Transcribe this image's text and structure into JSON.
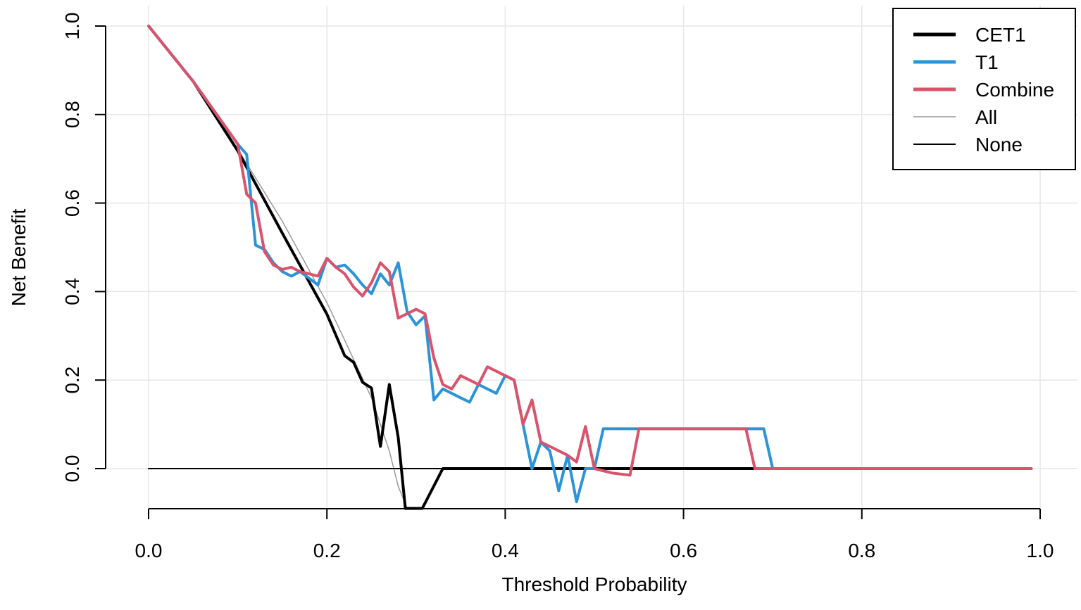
{
  "chart_data": {
    "type": "line",
    "title": "",
    "xlabel": "Threshold Probability",
    "ylabel": "Net Benefit",
    "xlim": [
      0.0,
      1.0
    ],
    "ylim": [
      -0.09,
      1.0
    ],
    "x_ticks": [
      "0.0",
      "0.2",
      "0.4",
      "0.6",
      "0.8",
      "1.0"
    ],
    "y_ticks": [
      "0.0",
      "0.2",
      "0.4",
      "0.6",
      "0.8",
      "1.0"
    ],
    "grid": true,
    "legend_position": "top-right",
    "series": [
      {
        "name": "CET1",
        "color": "#000000",
        "style": "thick",
        "points": [
          [
            0,
            1
          ],
          [
            0.05,
            0.875
          ],
          [
            0.1,
            0.718
          ],
          [
            0.15,
            0.532
          ],
          [
            0.2,
            0.349
          ],
          [
            0.22,
            0.255
          ],
          [
            0.23,
            0.24
          ],
          [
            0.24,
            0.195
          ],
          [
            0.25,
            0.182
          ],
          [
            0.26,
            0.05
          ],
          [
            0.27,
            0.19
          ],
          [
            0.28,
            0.07
          ],
          [
            0.288,
            -0.09
          ],
          [
            0.307,
            -0.09
          ],
          [
            0.33,
            0.0
          ],
          [
            0.5,
            0.0
          ],
          [
            0.7,
            0.0
          ],
          [
            0.99,
            0.0
          ]
        ]
      },
      {
        "name": "T1",
        "color": "#2b94d9",
        "style": "thick",
        "points": [
          [
            0,
            1
          ],
          [
            0.05,
            0.875
          ],
          [
            0.1,
            0.733
          ],
          [
            0.11,
            0.71
          ],
          [
            0.12,
            0.505
          ],
          [
            0.13,
            0.495
          ],
          [
            0.14,
            0.465
          ],
          [
            0.15,
            0.445
          ],
          [
            0.16,
            0.435
          ],
          [
            0.17,
            0.445
          ],
          [
            0.18,
            0.43
          ],
          [
            0.19,
            0.415
          ],
          [
            0.2,
            0.475
          ],
          [
            0.21,
            0.455
          ],
          [
            0.22,
            0.46
          ],
          [
            0.23,
            0.44
          ],
          [
            0.24,
            0.415
          ],
          [
            0.25,
            0.395
          ],
          [
            0.26,
            0.44
          ],
          [
            0.27,
            0.415
          ],
          [
            0.28,
            0.465
          ],
          [
            0.29,
            0.355
          ],
          [
            0.3,
            0.325
          ],
          [
            0.31,
            0.345
          ],
          [
            0.32,
            0.155
          ],
          [
            0.33,
            0.18
          ],
          [
            0.34,
            0.17
          ],
          [
            0.35,
            0.16
          ],
          [
            0.36,
            0.15
          ],
          [
            0.37,
            0.19
          ],
          [
            0.38,
            0.18
          ],
          [
            0.39,
            0.17
          ],
          [
            0.4,
            0.21
          ],
          [
            0.41,
            0.2
          ],
          [
            0.42,
            0.1
          ],
          [
            0.43,
            0.0
          ],
          [
            0.44,
            0.06
          ],
          [
            0.45,
            0.04
          ],
          [
            0.46,
            -0.05
          ],
          [
            0.47,
            0.03
          ],
          [
            0.48,
            -0.075
          ],
          [
            0.49,
            0.0
          ],
          [
            0.5,
            0.0
          ],
          [
            0.51,
            0.09
          ],
          [
            0.55,
            0.09
          ],
          [
            0.6,
            0.09
          ],
          [
            0.65,
            0.09
          ],
          [
            0.69,
            0.09
          ],
          [
            0.7,
            0.0
          ],
          [
            0.99,
            0.0
          ]
        ]
      },
      {
        "name": "Combine",
        "color": "#d9536b",
        "style": "thick",
        "points": [
          [
            0,
            1
          ],
          [
            0.05,
            0.875
          ],
          [
            0.1,
            0.733
          ],
          [
            0.11,
            0.62
          ],
          [
            0.12,
            0.6
          ],
          [
            0.13,
            0.49
          ],
          [
            0.14,
            0.46
          ],
          [
            0.15,
            0.45
          ],
          [
            0.16,
            0.455
          ],
          [
            0.17,
            0.445
          ],
          [
            0.18,
            0.44
          ],
          [
            0.19,
            0.435
          ],
          [
            0.2,
            0.475
          ],
          [
            0.21,
            0.455
          ],
          [
            0.22,
            0.44
          ],
          [
            0.23,
            0.41
          ],
          [
            0.24,
            0.39
          ],
          [
            0.25,
            0.42
          ],
          [
            0.26,
            0.465
          ],
          [
            0.27,
            0.445
          ],
          [
            0.28,
            0.34
          ],
          [
            0.29,
            0.35
          ],
          [
            0.3,
            0.36
          ],
          [
            0.31,
            0.35
          ],
          [
            0.32,
            0.25
          ],
          [
            0.33,
            0.19
          ],
          [
            0.34,
            0.18
          ],
          [
            0.35,
            0.21
          ],
          [
            0.36,
            0.2
          ],
          [
            0.37,
            0.19
          ],
          [
            0.38,
            0.23
          ],
          [
            0.39,
            0.22
          ],
          [
            0.4,
            0.21
          ],
          [
            0.41,
            0.2
          ],
          [
            0.42,
            0.1
          ],
          [
            0.43,
            0.155
          ],
          [
            0.44,
            0.06
          ],
          [
            0.45,
            0.05
          ],
          [
            0.46,
            0.04
          ],
          [
            0.47,
            0.03
          ],
          [
            0.48,
            0.015
          ],
          [
            0.49,
            0.095
          ],
          [
            0.5,
            0.0
          ],
          [
            0.52,
            -0.01
          ],
          [
            0.54,
            -0.015
          ],
          [
            0.55,
            0.09
          ],
          [
            0.6,
            0.09
          ],
          [
            0.65,
            0.09
          ],
          [
            0.67,
            0.09
          ],
          [
            0.68,
            0.0
          ],
          [
            0.99,
            0.0
          ]
        ]
      },
      {
        "name": "All",
        "color": "#999999",
        "style": "thin",
        "points": [
          [
            0,
            1
          ],
          [
            0.05,
            0.875
          ],
          [
            0.1,
            0.722
          ],
          [
            0.15,
            0.559
          ],
          [
            0.2,
            0.375
          ],
          [
            0.22,
            0.29
          ],
          [
            0.25,
            0.16
          ],
          [
            0.27,
            0.04
          ],
          [
            0.28,
            -0.04
          ],
          [
            0.29,
            -0.09
          ]
        ]
      },
      {
        "name": "None",
        "color": "#000000",
        "style": "thin",
        "points": [
          [
            0,
            0
          ],
          [
            0.99,
            0
          ]
        ]
      }
    ]
  }
}
